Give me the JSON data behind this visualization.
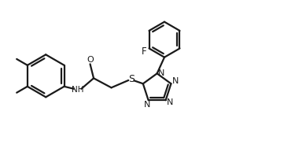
{
  "bg_color": "#ffffff",
  "line_color": "#1a1a1a",
  "line_width": 1.6,
  "fig_width": 3.75,
  "fig_height": 1.93,
  "dpi": 100,
  "xlim": [
    0,
    10
  ],
  "ylim": [
    0,
    5.15
  ]
}
